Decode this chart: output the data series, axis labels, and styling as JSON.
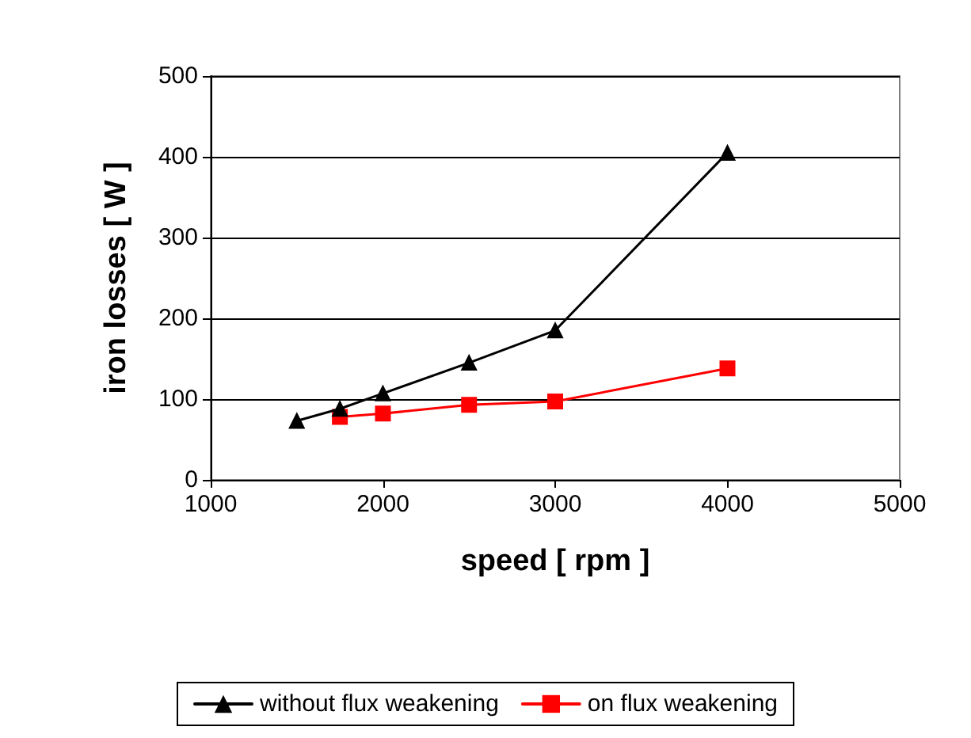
{
  "chart_data": {
    "type": "line",
    "xlabel": "speed [ rpm ]",
    "ylabel": "iron losses [ W ]",
    "xlim": [
      1000,
      5000
    ],
    "xticks": [
      1000,
      2000,
      3000,
      4000,
      5000
    ],
    "ylim": [
      0,
      500
    ],
    "yticks": [
      0,
      100,
      200,
      300,
      400,
      500
    ],
    "grid": "y",
    "legend": "bottom",
    "line_style": "solid",
    "series": [
      {
        "name": "without flux weakening",
        "color": "#000000",
        "marker": "triangle",
        "x": [
          1500,
          1750,
          2000,
          2500,
          3000,
          4000
        ],
        "values": [
          73,
          88,
          107,
          145,
          185,
          405
        ]
      },
      {
        "name": "on flux weakening",
        "color": "#ff0000",
        "marker": "square",
        "x": [
          1750,
          2000,
          2500,
          3000,
          4000
        ],
        "values": [
          78,
          82,
          93,
          97,
          138
        ]
      }
    ]
  }
}
